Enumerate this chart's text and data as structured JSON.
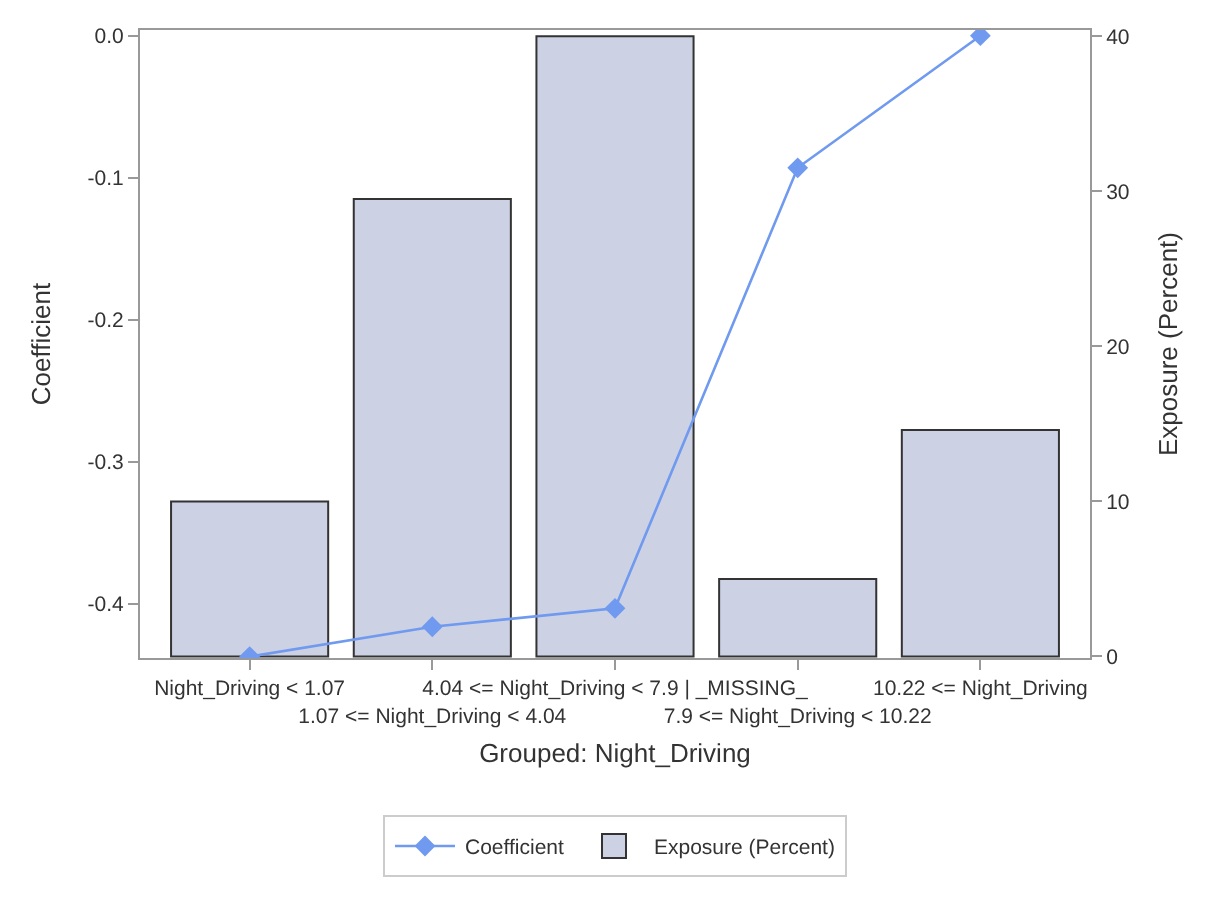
{
  "chart_data": {
    "type": "bar",
    "xlabel": "Grouped: Night_Driving",
    "ylabel": "Coefficient",
    "y2label": "Exposure (Percent)",
    "categories": [
      "Night_Driving < 1.07",
      "1.07 <= Night_Driving < 4.04",
      "4.04 <= Night_Driving < 7.9 | _MISSING_",
      "7.9 <= Night_Driving < 10.22",
      "10.22 <= Night_Driving"
    ],
    "series": [
      {
        "name": "Exposure (Percent)",
        "axis": "y2",
        "color": "#cdd1e4",
        "values": [
          10,
          29.5,
          40,
          5,
          14.6
        ]
      },
      {
        "name": "Coefficient",
        "type": "line",
        "axis": "y",
        "color": "#6f9aef",
        "marker": "diamond",
        "values": [
          -0.437,
          -0.416,
          -0.403,
          -0.093,
          0.0
        ]
      }
    ],
    "ylim": [
      -0.438,
      0.004
    ],
    "yticks": [
      {
        "value": -0.4,
        "label": "-0.4"
      },
      {
        "value": -0.3,
        "label": "-0.3"
      },
      {
        "value": -0.2,
        "label": "-0.2"
      },
      {
        "value": -0.1,
        "label": "-0.1"
      },
      {
        "value": 0,
        "label": "0.0"
      }
    ],
    "y2lim": [
      -0.1,
      40.4
    ],
    "y2ticks": [
      0,
      10,
      20,
      30,
      40
    ],
    "legend": "bottom"
  }
}
